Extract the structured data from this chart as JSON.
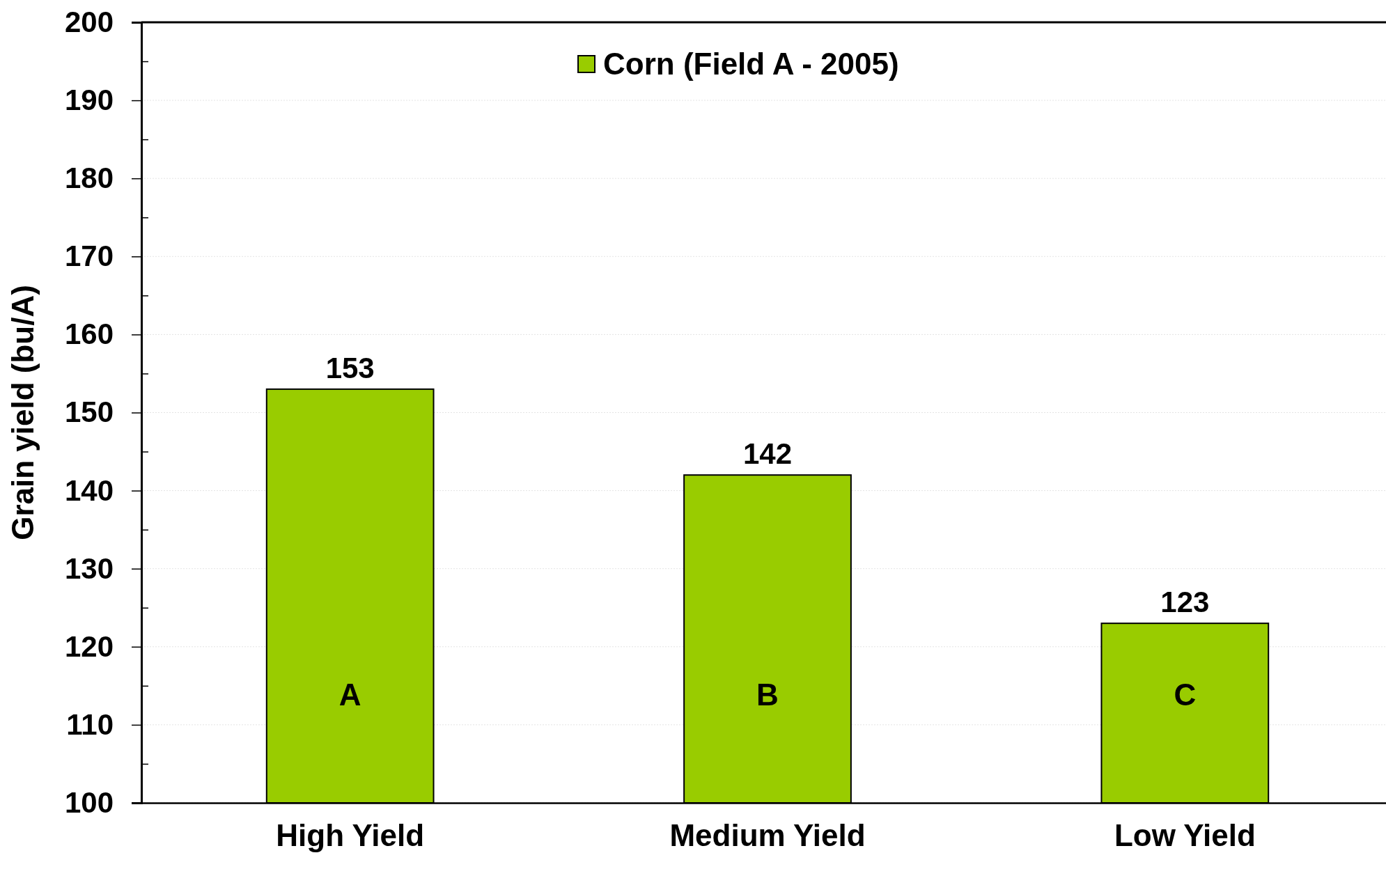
{
  "chart_data": {
    "type": "bar",
    "ylabel": "Grain yield (bu/A)",
    "categories": [
      "High Yield",
      "Medium Yield",
      "Low Yield"
    ],
    "series": [
      {
        "name": "Corn (Field A - 2005)",
        "color": "#99cc00",
        "values": [
          153,
          142,
          123
        ]
      }
    ],
    "ylim": [
      100,
      200
    ],
    "yticks": [
      100,
      {
        "value": 105,
        "label": null
      },
      110,
      {
        "value": 115,
        "label": null
      },
      120,
      {
        "value": 125,
        "label": null
      },
      130,
      {
        "value": 135,
        "label": null
      },
      140,
      {
        "value": 145,
        "label": null
      },
      150,
      {
        "value": 155,
        "label": null
      },
      160,
      {
        "value": 165,
        "label": null
      },
      170,
      {
        "value": 175,
        "label": null
      },
      180,
      {
        "value": 185,
        "label": null
      },
      190,
      {
        "value": 195,
        "label": null
      },
      200
    ],
    "grid": "y",
    "legend": "top",
    "data_labels": true,
    "annotations": [
      "A",
      "B",
      "C"
    ]
  }
}
